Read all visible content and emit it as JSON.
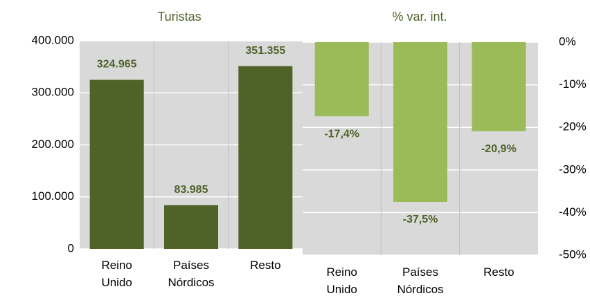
{
  "chart_data": [
    {
      "type": "bar",
      "title": "Turistas",
      "categories": [
        "Reino Unido",
        "Países Nórdicos",
        "Resto"
      ],
      "values": [
        324965,
        83985,
        351355
      ],
      "value_labels": [
        "324.965",
        "83.985",
        "351.355"
      ],
      "color": "#4f6228",
      "ylim": [
        0,
        400000
      ],
      "yticks": [
        0,
        {
          "value": 100000,
          "label": "100.000"
        },
        {
          "value": 200000,
          "label": "200.000"
        },
        {
          "value": 300000,
          "label": "300.000"
        },
        {
          "value": 400000,
          "label": "400.000"
        }
      ],
      "grid": true
    },
    {
      "type": "bar",
      "title": "% var. int.",
      "categories": [
        "Reino Unido",
        "Países Nórdicos",
        "Resto"
      ],
      "values": [
        -17.4,
        -37.5,
        -20.9
      ],
      "value_labels": [
        "-17,4%",
        "-37,5%",
        "-20,9%"
      ],
      "color": "#9bbb59",
      "axis": "y2",
      "y2lim": [
        -50,
        0
      ],
      "y2ticks": [
        {
          "value": 0,
          "label": "0%"
        },
        {
          "value": -10,
          "label": "-10%"
        },
        {
          "value": -20,
          "label": "-20%"
        },
        {
          "value": -30,
          "label": "-30%"
        },
        {
          "value": -40,
          "label": "-40%"
        },
        {
          "value": -50,
          "label": "-50%"
        }
      ],
      "grid": true
    }
  ]
}
